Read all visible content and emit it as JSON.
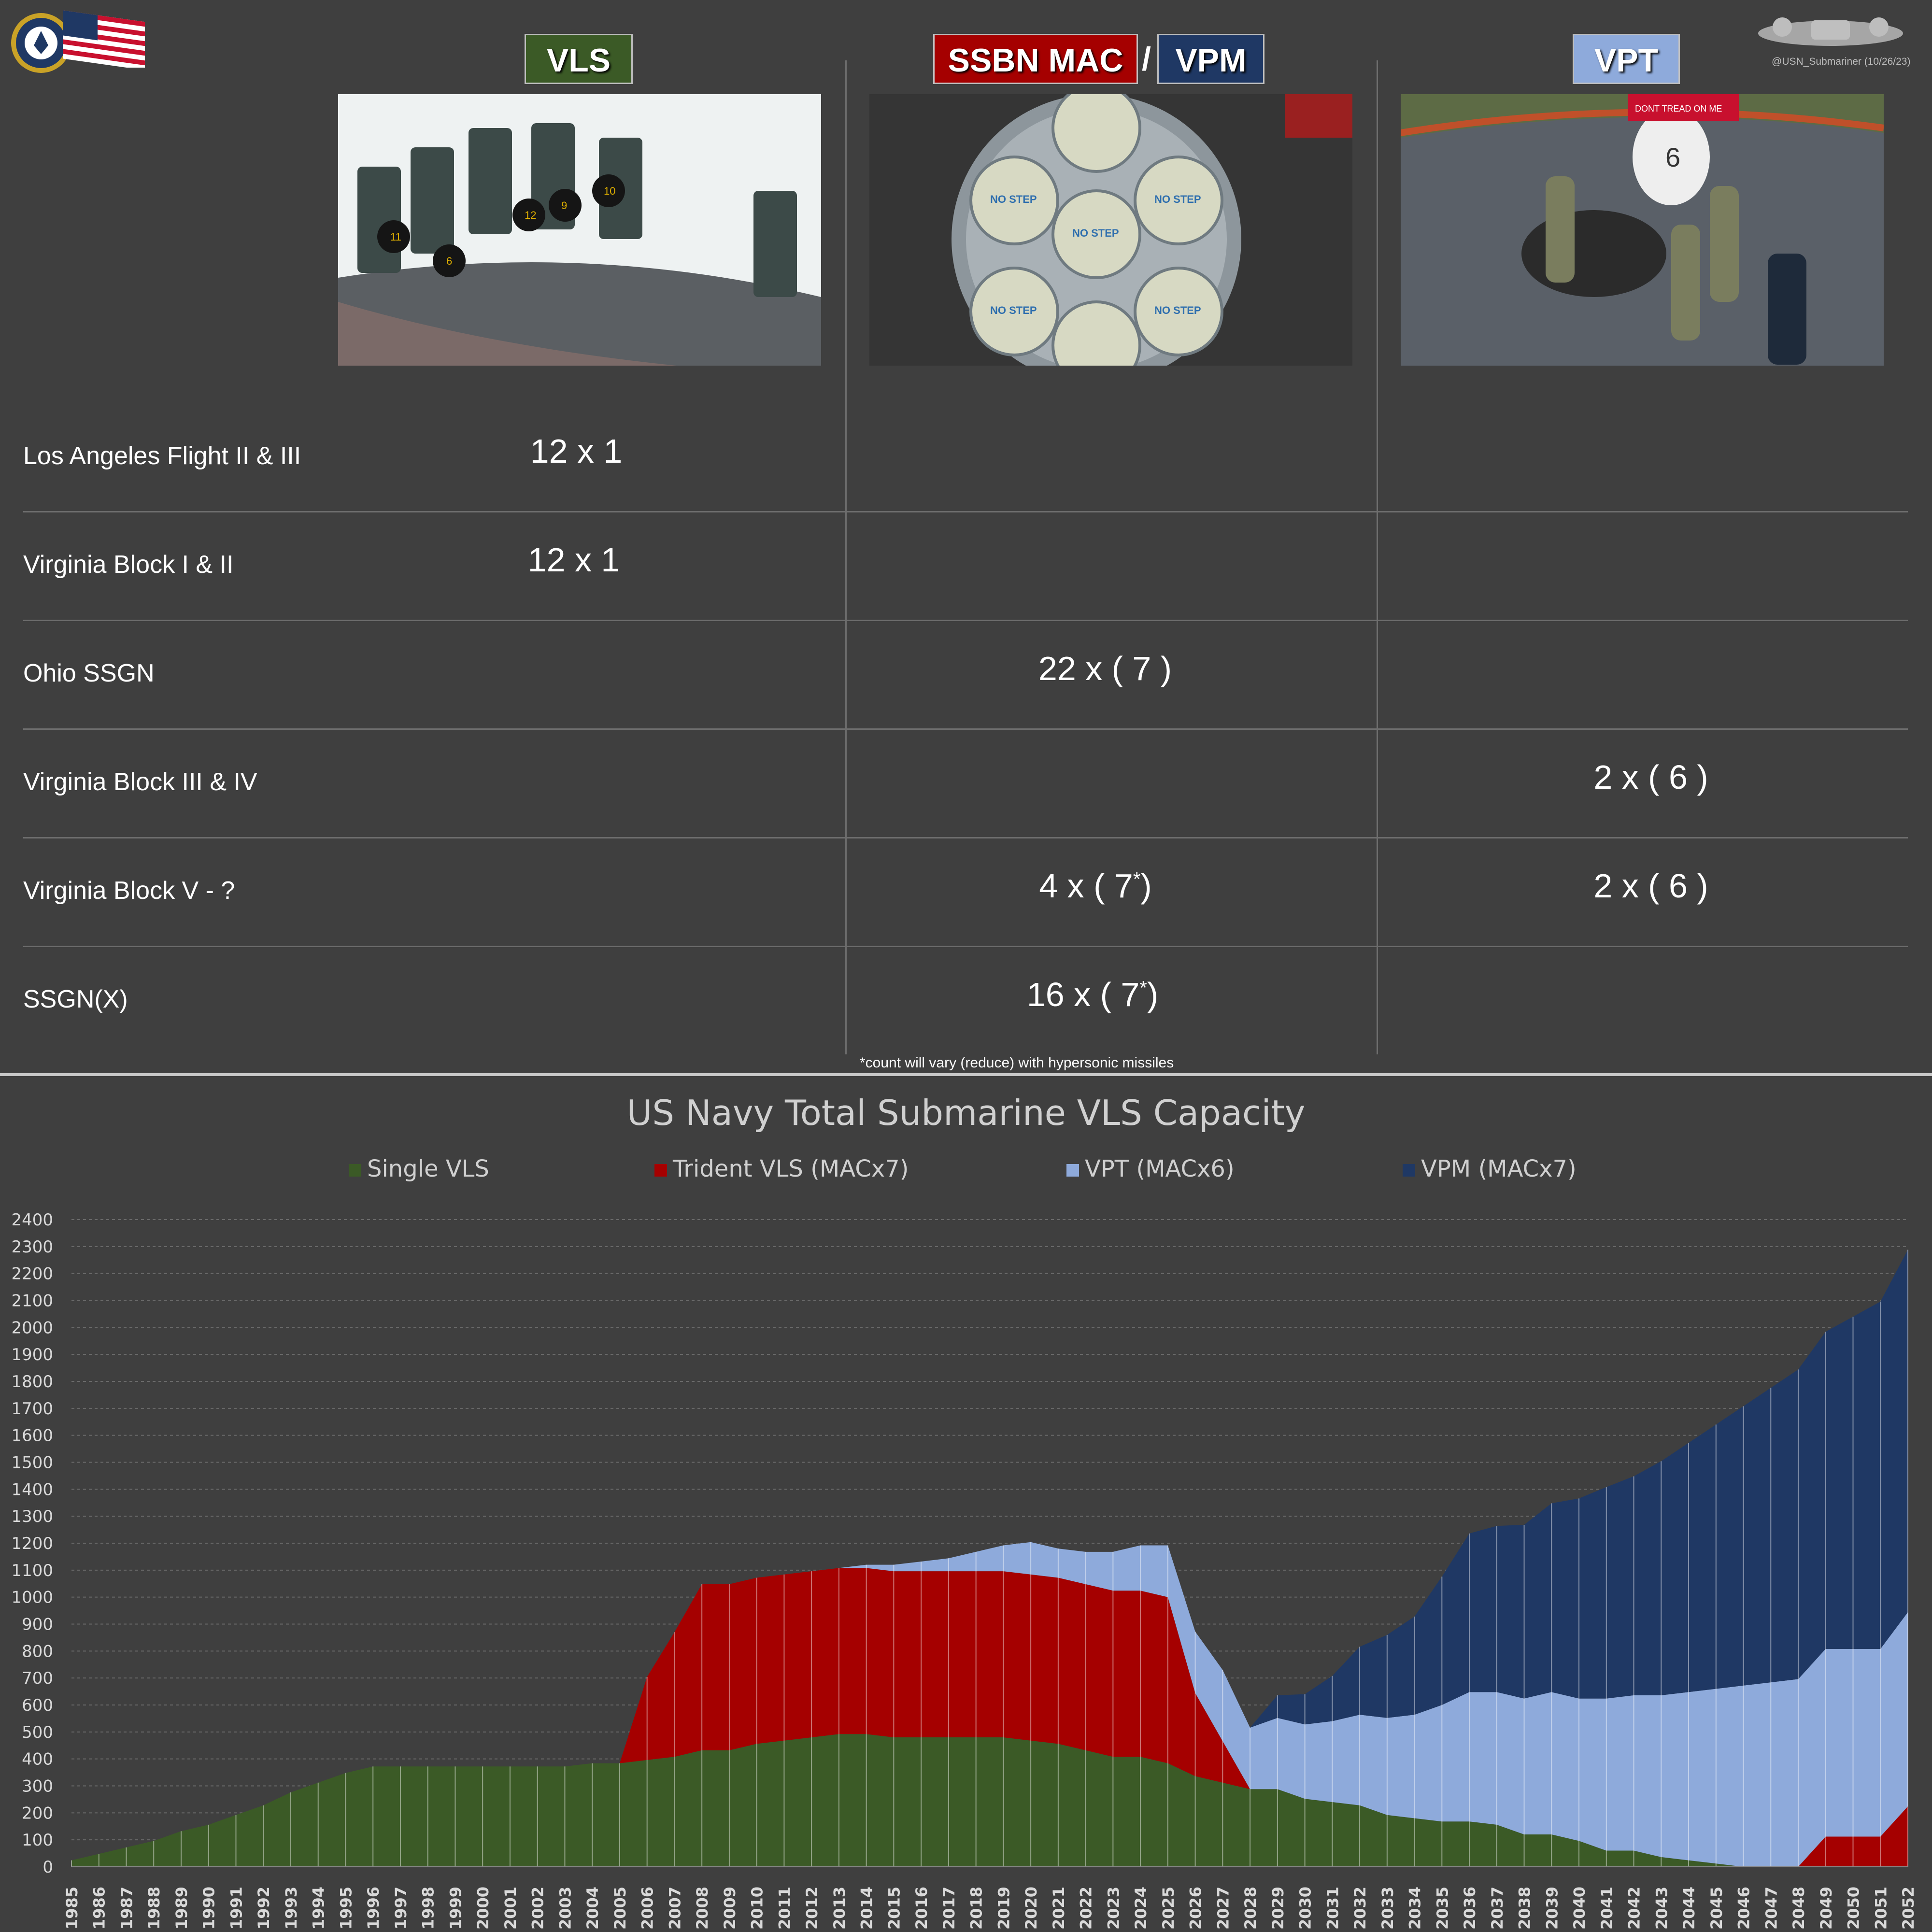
{
  "header": {
    "vls_label": "VLS",
    "ssbn_label": "SSBN MAC",
    "slash": "/",
    "vpm_label": "VPM",
    "vpt_label": "VPT",
    "credit": "@USN_Submariner (10/26/23)",
    "colors": {
      "vls": "#3b5a26",
      "ssbn": "#a50000",
      "vpm": "#1f3864",
      "vpt": "#8eaadb"
    }
  },
  "photos": {
    "vls": {
      "icon": "vls-hatches-photo",
      "number_marks": [
        "11",
        "12",
        "6",
        "9",
        "10"
      ]
    },
    "ssbn": {
      "icon": "mac-tube-photo",
      "caps_text": "NO STEP"
    },
    "vpt": {
      "icon": "vpt-crew-photo",
      "hatch_number": "6",
      "flag_text": "DONT TREAD ON ME"
    }
  },
  "table": {
    "rows": [
      {
        "label": "Los Angeles Flight II & III",
        "vls": "12 x 1",
        "mac": "",
        "mac_sup": "",
        "mac_tail": "",
        "vpt": ""
      },
      {
        "label": "Virginia Block I & II",
        "vls": "12 x 1",
        "mac": "",
        "mac_sup": "",
        "mac_tail": "",
        "vpt": ""
      },
      {
        "label": "Ohio SSGN",
        "vls": "",
        "mac": "22 x ( 7 )",
        "mac_sup": "",
        "mac_tail": "",
        "vpt": ""
      },
      {
        "label": "Virginia Block III & IV",
        "vls": "",
        "mac": "",
        "mac_sup": "",
        "mac_tail": "",
        "vpt": "2 x ( 6 )"
      },
      {
        "label": "Virginia Block V - ?",
        "vls": "",
        "mac": "4 x ( 7",
        "mac_sup": "*",
        "mac_tail": ")",
        "vpt": "2 x ( 6 )"
      },
      {
        "label": "SSGN(X)",
        "vls": "",
        "mac": "16 x ( 7",
        "mac_sup": "*",
        "mac_tail": ")",
        "vpt": ""
      }
    ],
    "footnote": "*count will vary (reduce) with hypersonic missiles"
  },
  "chart_data": {
    "type": "area",
    "stacked": true,
    "title": "US Navy Total Submarine VLS Capacity",
    "xlabel": "",
    "ylabel": "",
    "ylim": [
      0,
      2400
    ],
    "yticks": [
      0,
      100,
      200,
      300,
      400,
      500,
      600,
      700,
      800,
      900,
      1000,
      1100,
      1200,
      1300,
      1400,
      1500,
      1600,
      1700,
      1800,
      1900,
      2000,
      2100,
      2200,
      2300,
      2400
    ],
    "grid": true,
    "legend_position": "top",
    "categories": [
      "1985",
      "1986",
      "1987",
      "1988",
      "1989",
      "1990",
      "1991",
      "1992",
      "1993",
      "1994",
      "1995",
      "1996",
      "1997",
      "1998",
      "1999",
      "2000",
      "2001",
      "2002",
      "2003",
      "2004",
      "2005",
      "2006",
      "2007",
      "2008",
      "2009",
      "2010",
      "2011",
      "2012",
      "2013",
      "2014",
      "2015",
      "2016",
      "2017",
      "2018",
      "2019",
      "2020",
      "2021",
      "2022",
      "2023",
      "2024",
      "2025",
      "2026",
      "2027",
      "2028",
      "2029",
      "2030",
      "2031",
      "2032",
      "2033",
      "2034",
      "2035",
      "2036",
      "2037",
      "2038",
      "2039",
      "2040",
      "2041",
      "2042",
      "2043",
      "2044",
      "2045",
      "2046",
      "2047",
      "2048",
      "2049",
      "2050",
      "2051",
      "2052"
    ],
    "series": [
      {
        "name": "Single VLS",
        "color": "#3b5a26",
        "values": [
          24,
          48,
          72,
          96,
          132,
          156,
          192,
          228,
          276,
          312,
          348,
          372,
          372,
          372,
          372,
          372,
          372,
          372,
          372,
          384,
          384,
          396,
          408,
          432,
          432,
          456,
          468,
          480,
          492,
          492,
          480,
          480,
          480,
          480,
          480,
          468,
          456,
          432,
          408,
          408,
          384,
          336,
          312,
          288,
          288,
          252,
          240,
          228,
          192,
          180,
          168,
          168,
          156,
          120,
          120,
          96,
          60,
          60,
          36,
          24,
          12,
          0,
          0,
          0,
          0,
          0,
          0,
          0
        ]
      },
      {
        "name": "Trident VLS (MACx7)",
        "color": "#a50000",
        "values": [
          0,
          0,
          0,
          0,
          0,
          0,
          0,
          0,
          0,
          0,
          0,
          0,
          0,
          0,
          0,
          0,
          0,
          0,
          0,
          0,
          0,
          308,
          462,
          616,
          616,
          616,
          616,
          616,
          616,
          616,
          616,
          616,
          616,
          616,
          616,
          616,
          616,
          616,
          616,
          616,
          616,
          308,
          154,
          0,
          0,
          0,
          0,
          0,
          0,
          0,
          0,
          0,
          0,
          0,
          0,
          0,
          0,
          0,
          0,
          0,
          0,
          0,
          0,
          0,
          112,
          112,
          112,
          224
        ]
      },
      {
        "name": "VPT (MACx6)",
        "color": "#8eaadb",
        "values": [
          0,
          0,
          0,
          0,
          0,
          0,
          0,
          0,
          0,
          0,
          0,
          0,
          0,
          0,
          0,
          0,
          0,
          0,
          0,
          0,
          0,
          0,
          0,
          0,
          0,
          0,
          0,
          0,
          0,
          12,
          24,
          36,
          48,
          72,
          96,
          120,
          108,
          120,
          144,
          168,
          192,
          228,
          264,
          228,
          264,
          276,
          300,
          336,
          360,
          384,
          432,
          480,
          492,
          504,
          528,
          528,
          564,
          576,
          600,
          624,
          648,
          672,
          684,
          696,
          696,
          696,
          696,
          720
        ]
      },
      {
        "name": "VPM (MACx7)",
        "color": "#1f3864",
        "values": [
          0,
          0,
          0,
          0,
          0,
          0,
          0,
          0,
          0,
          0,
          0,
          0,
          0,
          0,
          0,
          0,
          0,
          0,
          0,
          0,
          0,
          0,
          0,
          0,
          0,
          0,
          0,
          0,
          0,
          0,
          0,
          0,
          0,
          0,
          0,
          0,
          0,
          0,
          0,
          0,
          0,
          0,
          0,
          0,
          84,
          112,
          168,
          252,
          308,
          364,
          476,
          588,
          616,
          644,
          700,
          742,
          784,
          812,
          868,
          924,
          980,
          1036,
          1092,
          1148,
          1176,
          1232,
          1288,
          1344
        ]
      }
    ]
  }
}
